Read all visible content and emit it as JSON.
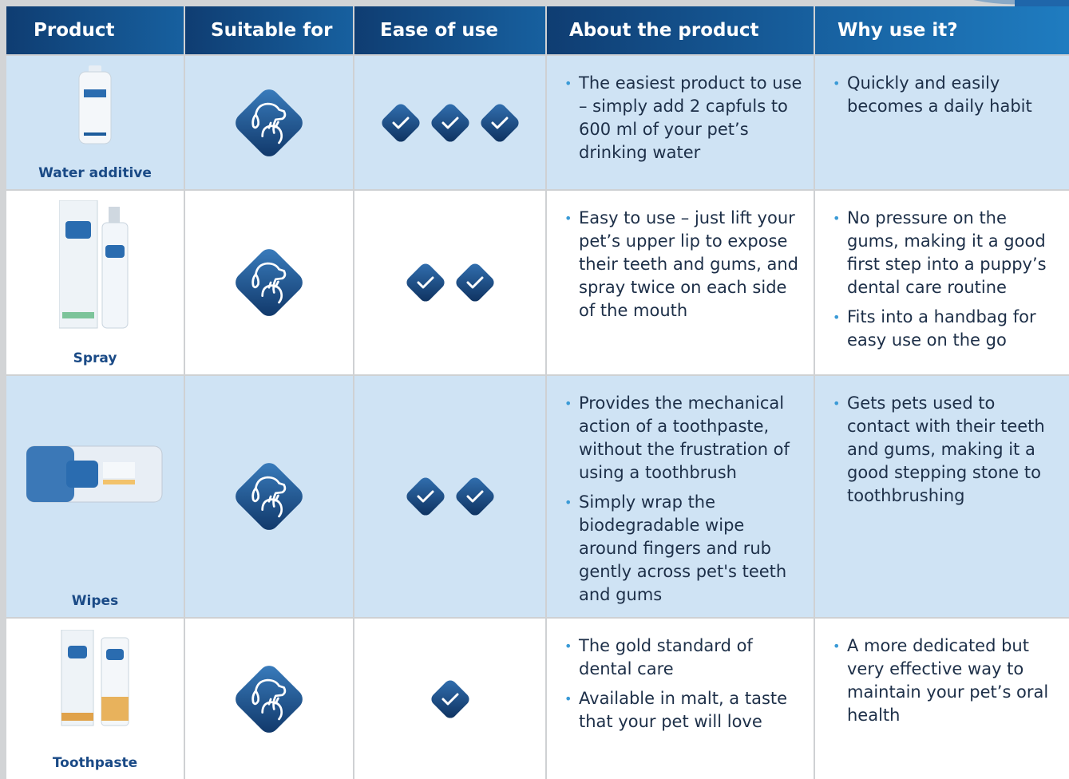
{
  "table": {
    "header": [
      "Product",
      "Suitable for",
      "Ease of use",
      "About the product",
      "Why use it?"
    ],
    "rows": [
      {
        "product": "Water additive",
        "ease": 3,
        "about": [
          "The easiest product to use – simply add 2 capfuls to 600 ml of your pet’s drinking water"
        ],
        "why": [
          "Quickly and easily becomes a daily habit"
        ]
      },
      {
        "product": "Spray",
        "ease": 2,
        "about": [
          "Easy to use – just lift your pet’s upper lip to expose their teeth and gums, and spray twice on each side of the mouth"
        ],
        "why": [
          "No pressure on the gums, making it a good first step into a puppy’s dental care routine",
          "Fits into a handbag for easy use on the go"
        ]
      },
      {
        "product": "Wipes",
        "ease": 2,
        "about": [
          "Provides the mechanical action of a toothpaste, without the frustration of using a toothbrush",
          "Simply wrap the biodegradable wipe around fingers and rub gently across pet's teeth and gums"
        ],
        "why": [
          "Gets pets used to contact with their teeth and gums, making it a good stepping stone to toothbrushing"
        ]
      },
      {
        "product": "Toothpaste",
        "ease": 1,
        "about": [
          "The gold standard of dental care",
          "Available in malt, a taste that your pet will love"
        ],
        "why": [
          "A more dedicated but very effective way to maintain your pet’s oral health"
        ]
      }
    ]
  }
}
